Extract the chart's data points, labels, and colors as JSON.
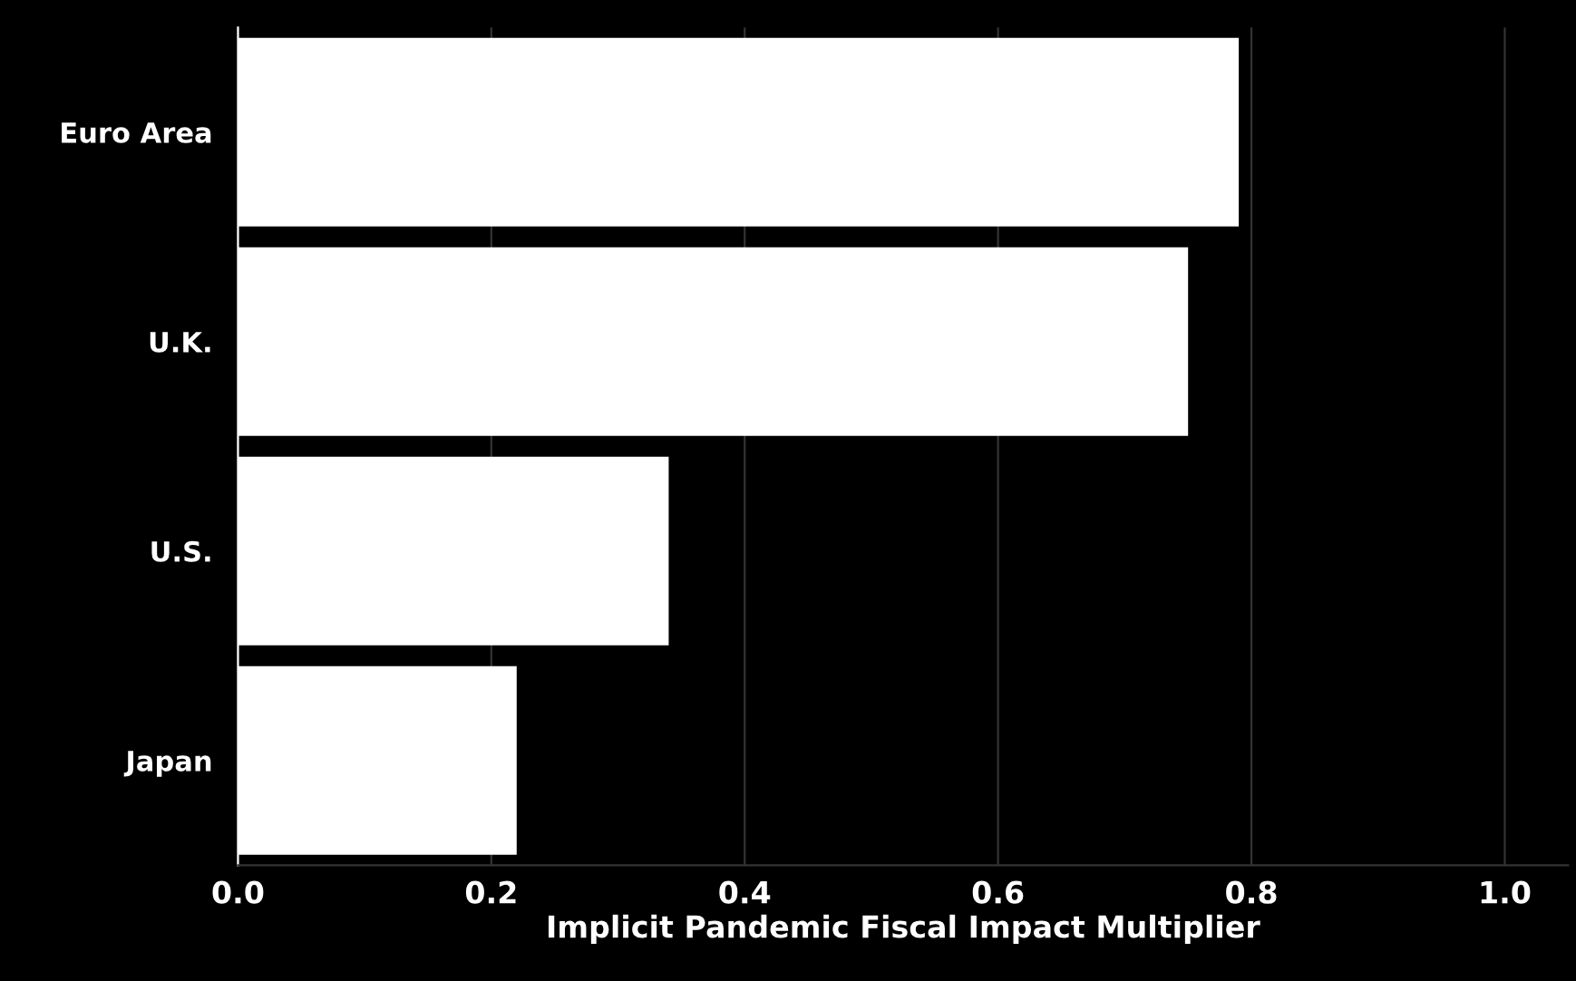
{
  "chart_data": {
    "type": "bar",
    "orientation": "horizontal",
    "categories": [
      "Euro Area",
      "U.K.",
      "U.S.",
      "Japan"
    ],
    "values": [
      0.79,
      0.75,
      0.34,
      0.22
    ],
    "color": "#ffffff",
    "xlabel": "Implicit Pandemic Fiscal Impact Multiplier",
    "xlim": [
      0,
      1.05
    ],
    "xticks": [
      {
        "value": 0,
        "label": "0.0"
      },
      {
        "value": 0.2,
        "label": "0.2"
      },
      {
        "value": 0.4,
        "label": "0.4"
      },
      {
        "value": 0.6,
        "label": "0.6"
      },
      {
        "value": 0.8,
        "label": "0.8"
      },
      {
        "value": 1.0,
        "label": "1.0"
      }
    ],
    "grid": "x",
    "legend": false
  }
}
